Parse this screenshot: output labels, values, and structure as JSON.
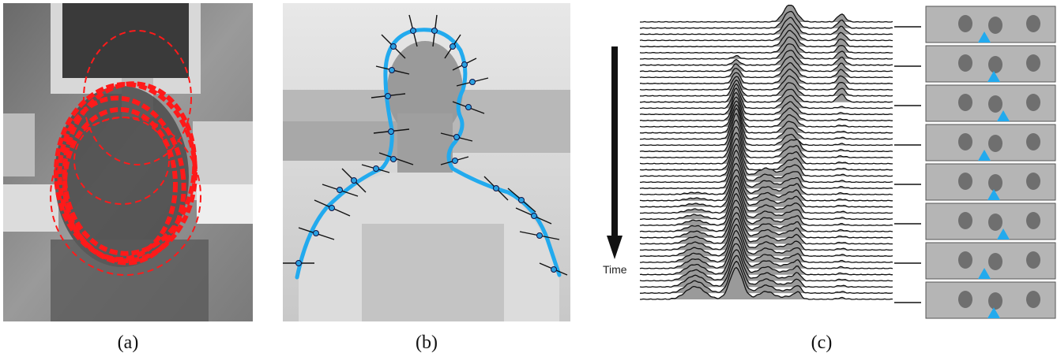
{
  "panels": {
    "a": {
      "caption": "(a)",
      "content": "face silhouette image with overlaid red dashed elliptical contours"
    },
    "b": {
      "caption": "(b)",
      "content": "head-and-shoulders image with cyan contour and normal measurement lines"
    },
    "c": {
      "caption": "(c)",
      "content": "stacked density plots over time with thumbnail frames"
    }
  },
  "time_label": "Time",
  "colors": {
    "contour_red": "#ff1a1a",
    "contour_cyan": "#22aaee",
    "density_fill": "#9a9a9a",
    "ink": "#111111"
  }
}
